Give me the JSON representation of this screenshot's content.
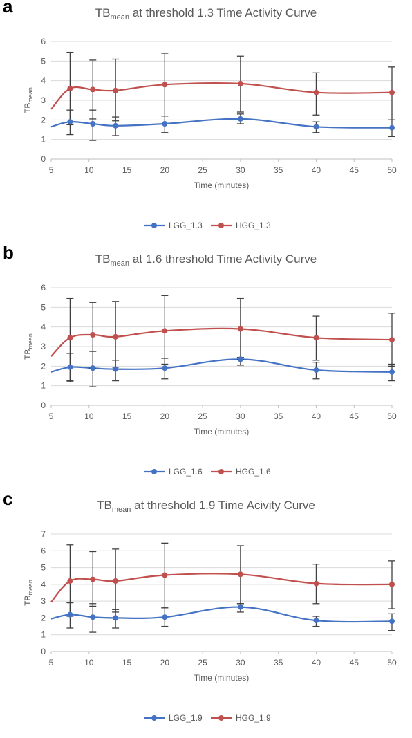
{
  "chart_data": [
    {
      "panel_label": "a",
      "type": "line",
      "title": {
        "main": "TB",
        "sub": "mean",
        "rest": " at threshold 1.3 Time Activity Curve"
      },
      "xlabel": "Time (minutes)",
      "ylabel": {
        "main": "TB",
        "sub": "mean"
      },
      "xlim": [
        5,
        50
      ],
      "ylim": [
        0,
        6
      ],
      "xticks": [
        5,
        10,
        15,
        20,
        25,
        30,
        35,
        40,
        45,
        50
      ],
      "yticks": [
        0,
        1,
        2,
        3,
        4,
        5,
        6
      ],
      "x": [
        7.5,
        10.5,
        13.5,
        20,
        30,
        40,
        50
      ],
      "series": [
        {
          "name": "LGG_1.3",
          "color": "#4472c4",
          "values": [
            1.9,
            1.8,
            1.7,
            1.8,
            2.05,
            1.65,
            1.6
          ],
          "err_low": [
            1.25,
            0.95,
            1.2,
            1.35,
            1.8,
            1.35,
            1.15
          ],
          "err_high": [
            2.5,
            2.5,
            2.15,
            2.2,
            2.3,
            1.9,
            2.0
          ],
          "line_start": 1.65,
          "line_end_min": 45
        },
        {
          "name": "HGG_1.3",
          "color": "#c0504d",
          "values": [
            3.6,
            3.55,
            3.5,
            3.8,
            3.85,
            3.4,
            3.4
          ],
          "err_low": [
            1.75,
            2.05,
            1.95,
            2.2,
            2.4,
            2.25,
            2.0
          ],
          "err_high": [
            5.45,
            5.05,
            5.1,
            5.4,
            5.25,
            4.4,
            4.7
          ],
          "line_start": 2.55
        }
      ],
      "grid": true,
      "legend": "bottom"
    },
    {
      "panel_label": "b",
      "type": "line",
      "title": {
        "main": "TB",
        "sub": "mean",
        "rest": " at 1.6 threshold Time Activity Curve"
      },
      "xlabel": "Time (minutes)",
      "ylabel": {
        "main": "TB",
        "sub": "mean"
      },
      "xlim": [
        5,
        50
      ],
      "ylim": [
        0,
        6
      ],
      "xticks": [
        5,
        10,
        15,
        20,
        25,
        30,
        35,
        40,
        45,
        50
      ],
      "yticks": [
        0,
        1,
        2,
        3,
        4,
        5,
        6
      ],
      "x": [
        7.5,
        10.5,
        13.5,
        20,
        30,
        40,
        50
      ],
      "series": [
        {
          "name": "LGG_1.6",
          "color": "#4472c4",
          "values": [
            1.95,
            1.9,
            1.85,
            1.9,
            2.35,
            1.8,
            1.7
          ],
          "err_low": [
            1.2,
            0.95,
            1.25,
            1.35,
            2.05,
            1.35,
            1.25
          ],
          "err_high": [
            2.65,
            2.75,
            2.3,
            2.4,
            2.45,
            2.2,
            2.1
          ],
          "line_start": 1.7
        },
        {
          "name": "HGG_1.6",
          "color": "#c0504d",
          "values": [
            3.45,
            3.6,
            3.5,
            3.8,
            3.9,
            3.45,
            3.35
          ],
          "err_low": [
            1.25,
            1.9,
            1.95,
            2.1,
            2.35,
            2.3,
            2.0
          ],
          "err_high": [
            5.45,
            5.25,
            5.3,
            5.6,
            5.45,
            4.55,
            4.7
          ],
          "line_start": 2.5
        }
      ],
      "grid": true,
      "legend": "bottom"
    },
    {
      "panel_label": "c",
      "type": "line",
      "title": {
        "main": "TB",
        "sub": "mean",
        "rest": " at threshold 1.9 Time Acivity Curve"
      },
      "xlabel": "Time (minutes)",
      "ylabel": {
        "main": "TB",
        "sub": "mean"
      },
      "xlim": [
        5,
        50
      ],
      "ylim": [
        0,
        7
      ],
      "xticks": [
        5,
        10,
        15,
        20,
        25,
        30,
        35,
        40,
        45,
        50
      ],
      "yticks": [
        0,
        1,
        2,
        3,
        4,
        5,
        6,
        7
      ],
      "x": [
        7.5,
        10.5,
        13.5,
        20,
        30,
        40,
        50
      ],
      "series": [
        {
          "name": "LGG_1.9",
          "color": "#4472c4",
          "values": [
            2.2,
            2.05,
            2.0,
            2.05,
            2.65,
            1.85,
            1.8
          ],
          "err_low": [
            1.4,
            1.15,
            1.4,
            1.5,
            2.35,
            1.5,
            1.25
          ],
          "err_high": [
            2.9,
            2.85,
            2.5,
            2.6,
            2.85,
            2.1,
            2.25
          ],
          "line_start": 1.95
        },
        {
          "name": "HGG_1.9",
          "color": "#c0504d",
          "values": [
            4.2,
            4.3,
            4.2,
            4.55,
            4.6,
            4.05,
            4.0
          ],
          "err_low": [
            2.1,
            2.7,
            2.35,
            2.6,
            2.85,
            2.85,
            2.55
          ],
          "err_high": [
            6.35,
            5.95,
            6.1,
            6.45,
            6.3,
            5.2,
            5.4
          ],
          "line_start": 2.95
        }
      ],
      "grid": true,
      "legend": "bottom"
    }
  ]
}
